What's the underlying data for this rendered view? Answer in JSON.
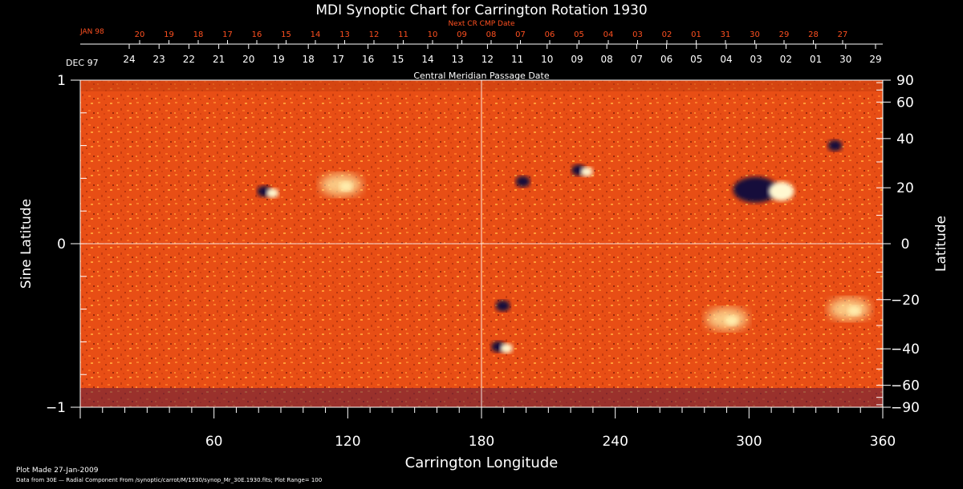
{
  "chart_data": {
    "type": "heatmap",
    "title": "MDI Synoptic Chart for Carrington Rotation 1930",
    "top_axis_label": "Next CR CMP Date",
    "top_axis_start": "JAN 98",
    "top_axis_ticks": [
      "20",
      "19",
      "18",
      "17",
      "16",
      "15",
      "14",
      "13",
      "12",
      "11",
      "10",
      "09",
      "08",
      "07",
      "06",
      "05",
      "04",
      "03",
      "02",
      "01",
      "31",
      "30",
      "29",
      "28",
      "27"
    ],
    "second_axis_label": "Central Meridian Passage Date",
    "second_axis_start": "DEC 97",
    "second_axis_ticks": [
      "24",
      "23",
      "22",
      "21",
      "20",
      "19",
      "18",
      "17",
      "16",
      "15",
      "14",
      "13",
      "12",
      "11",
      "10",
      "09",
      "08",
      "07",
      "06",
      "05",
      "04",
      "03",
      "02",
      "01",
      "30",
      "29"
    ],
    "xlabel": "Carrington Longitude",
    "xlim": [
      0,
      360
    ],
    "x_major_ticks": [
      60,
      120,
      180,
      240,
      300,
      360
    ],
    "x_tick_labels": [
      "60",
      "120",
      "180",
      "240",
      "300",
      "360"
    ],
    "ylabel_left": "Sine Latitude",
    "ylim_left": [
      -1,
      1
    ],
    "y_left_ticks": [
      "1",
      "0",
      "−1"
    ],
    "ylabel_right": "Latitude",
    "y_right_ticks": [
      {
        "deg": 90,
        "label": "90"
      },
      {
        "deg": 60,
        "label": "60"
      },
      {
        "deg": 40,
        "label": "40"
      },
      {
        "deg": 20,
        "label": "20"
      },
      {
        "deg": 0,
        "label": "0"
      },
      {
        "deg": -20,
        "label": "−20"
      },
      {
        "deg": -40,
        "label": "−40"
      },
      {
        "deg": -60,
        "label": "−60"
      },
      {
        "deg": -90,
        "label": "−90"
      }
    ],
    "crosshair": {
      "longitude": 180,
      "sine_latitude": 0
    },
    "plot_range": 100,
    "active_regions": [
      {
        "lon": 84,
        "sinlat": 0.32,
        "type": "bipole"
      },
      {
        "lon": 117,
        "sinlat": 0.36,
        "type": "plage"
      },
      {
        "lon": 225,
        "sinlat": 0.45,
        "type": "bipole"
      },
      {
        "lon": 200,
        "sinlat": 0.38,
        "type": "spot"
      },
      {
        "lon": 308,
        "sinlat": 0.33,
        "type": "large-bipole"
      },
      {
        "lon": 340,
        "sinlat": 0.6,
        "type": "spot"
      },
      {
        "lon": 191,
        "sinlat": -0.38,
        "type": "spot"
      },
      {
        "lon": 189,
        "sinlat": -0.63,
        "type": "bipole"
      },
      {
        "lon": 345,
        "sinlat": -0.4,
        "type": "plage"
      },
      {
        "lon": 290,
        "sinlat": -0.46,
        "type": "plage"
      }
    ]
  },
  "footer": {
    "made": "Plot Made 27-Jan-2009",
    "source": "Data from 30E — Radial Component From /synoptic/carrot/M/1930/synop_Mr_30E.1930.fits; Plot Range= 100"
  },
  "colors": {
    "field": "#e8541c",
    "background": "#000000",
    "accent_red": "#ff5020",
    "text": "#ffffff"
  }
}
